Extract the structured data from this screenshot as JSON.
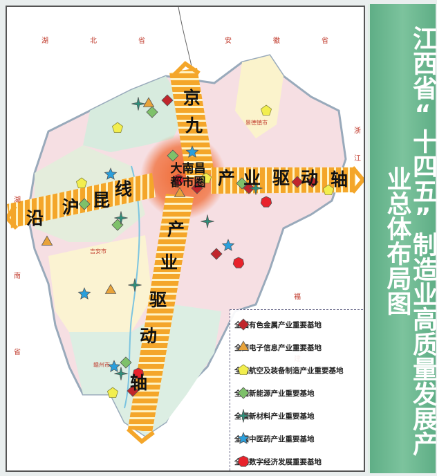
{
  "title": "江西省“十四五”制造业高质量发展产业总体布局图",
  "provinces": {
    "hubei": [
      "湖",
      "北",
      "省"
    ],
    "anhui": [
      "安",
      "徽",
      "省"
    ],
    "zhejiang": [
      "浙",
      "江"
    ],
    "hunan": [
      "湖",
      "南",
      "省"
    ],
    "fujian": [
      "福",
      "建"
    ]
  },
  "cities": [
    "景德镇市",
    "吉安市",
    "赣州市"
  ],
  "corridors": {
    "jingjiu": [
      "京",
      "九",
      "产",
      "业",
      "驱",
      "动",
      "轴"
    ],
    "hukun_left": [
      "沿",
      "沪",
      "昆",
      "线"
    ],
    "hukun_right": [
      "产",
      "业",
      "驱",
      "动",
      "轴"
    ]
  },
  "metro_area": "大南昌都市圈",
  "legend": [
    {
      "label": "全国有色金属产业重要基地",
      "icon": "diamond",
      "color": "#c0262c"
    },
    {
      "label": "全国电子信息产业重要基地",
      "icon": "triangle",
      "color": "#e8a33a"
    },
    {
      "label": "全国航空及装备制造产业重要基地",
      "icon": "pentagon",
      "color": "#f2ee4e"
    },
    {
      "label": "全国新能源产业重要基地",
      "icon": "diamond",
      "color": "#7ec16a"
    },
    {
      "label": "全国新材料产业重要基地",
      "icon": "four-point-star",
      "color": "#2e8f7a"
    },
    {
      "label": "全国中医药产业重要基地",
      "icon": "star",
      "color": "#2a9fdc"
    },
    {
      "label": "全国数字经济发展重要基地",
      "icon": "heptagon",
      "color": "#e8222b"
    }
  ],
  "colors": {
    "corridor": "#f4a62a",
    "corridor_stripe": "#fff3c4",
    "metro_glow": "#f0642a",
    "title_panel": "#6fba92"
  }
}
